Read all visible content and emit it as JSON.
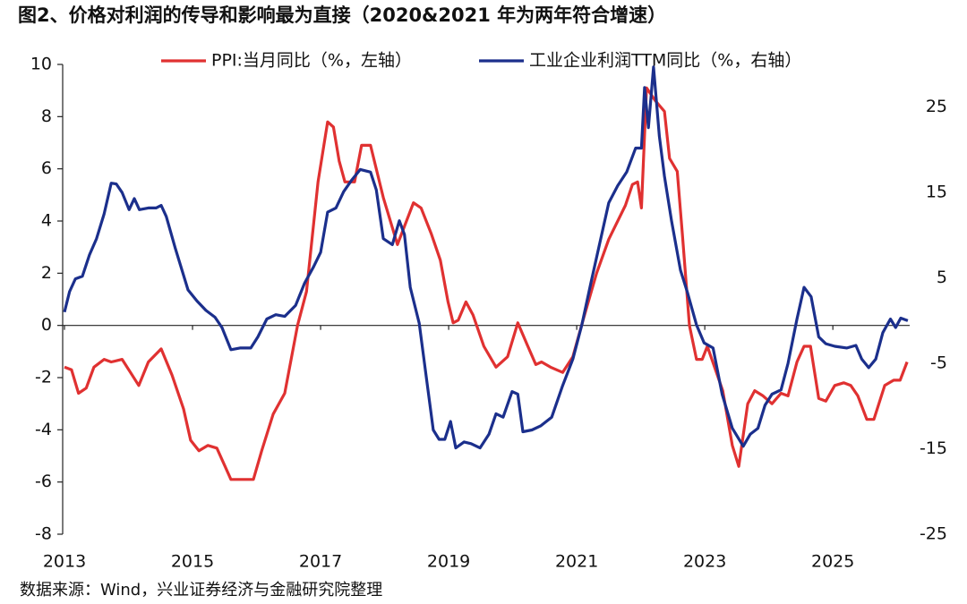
{
  "chart_data": {
    "type": "line",
    "title": "图2、价格对利润的传导和影响最为直接（2020&2021 年为两年符合增速）",
    "source": "数据来源：Wind，兴业证券经济与金融研究院整理",
    "xlim": [
      2013,
      2026.2
    ],
    "xticks": [
      2013,
      2015,
      2017,
      2019,
      2021,
      2023,
      2025
    ],
    "ylim": [
      -8,
      10
    ],
    "yticks": [
      -8,
      -6,
      -4,
      -2,
      0,
      2,
      4,
      6,
      8,
      10
    ],
    "y2lim": [
      -25,
      30
    ],
    "y2ticks": [
      -25,
      -15,
      -5,
      5,
      15,
      25
    ],
    "legend": "top",
    "series": [
      {
        "name": "PPI:当月同比（%，左轴）",
        "color": "#e03131",
        "x": [
          2013.0,
          2013.11,
          2013.22,
          2013.34,
          2013.46,
          2013.62,
          2013.73,
          2013.9,
          2014.03,
          2014.16,
          2014.31,
          2014.51,
          2014.68,
          2014.86,
          2014.97,
          2015.1,
          2015.24,
          2015.38,
          2015.6,
          2015.8,
          2015.95,
          2016.08,
          2016.26,
          2016.44,
          2016.64,
          2016.78,
          2016.96,
          2017.11,
          2017.2,
          2017.29,
          2017.38,
          2017.53,
          2017.64,
          2017.78,
          2017.98,
          2018.2,
          2018.45,
          2018.57,
          2018.73,
          2018.87,
          2018.99,
          2019.07,
          2019.15,
          2019.27,
          2019.38,
          2019.55,
          2019.74,
          2019.92,
          2020.08,
          2020.22,
          2020.36,
          2020.45,
          2020.59,
          2020.78,
          2020.94,
          2021.11,
          2021.31,
          2021.5,
          2021.76,
          2021.87,
          2021.95,
          2022.01,
          2022.09,
          2022.23,
          2022.37,
          2022.45,
          2022.57,
          2022.65,
          2022.76,
          2022.87,
          2022.96,
          2023.04,
          2023.28,
          2023.43,
          2023.53,
          2023.67,
          2023.78,
          2023.91,
          2024.05,
          2024.19,
          2024.3,
          2024.44,
          2024.55,
          2024.65,
          2024.78,
          2024.89,
          2025.03,
          2025.17,
          2025.28,
          2025.39,
          2025.53,
          2025.64,
          2025.81,
          2025.95,
          2026.05,
          2026.16
        ],
        "values": [
          -1.6,
          -1.7,
          -2.6,
          -2.4,
          -1.6,
          -1.3,
          -1.4,
          -1.3,
          -1.8,
          -2.3,
          -1.4,
          -0.9,
          -1.9,
          -3.2,
          -4.4,
          -4.8,
          -4.6,
          -4.7,
          -5.9,
          -5.9,
          -5.9,
          -4.8,
          -3.4,
          -2.6,
          0.0,
          1.3,
          5.5,
          7.8,
          7.6,
          6.3,
          5.5,
          5.5,
          6.9,
          6.9,
          4.9,
          3.1,
          4.7,
          4.5,
          3.5,
          2.5,
          0.9,
          0.1,
          0.2,
          0.9,
          0.4,
          -0.8,
          -1.6,
          -1.2,
          0.1,
          -0.7,
          -1.5,
          -1.4,
          -1.6,
          -1.8,
          -1.2,
          0.3,
          2.0,
          3.3,
          4.6,
          5.4,
          5.5,
          4.5,
          9.1,
          8.6,
          8.2,
          6.4,
          5.9,
          3.5,
          0.0,
          -1.3,
          -1.3,
          -0.8,
          -2.5,
          -4.6,
          -5.4,
          -3.0,
          -2.5,
          -2.7,
          -3.0,
          -2.6,
          -2.7,
          -1.4,
          -0.8,
          -0.8,
          -2.8,
          -2.9,
          -2.3,
          -2.2,
          -2.3,
          -2.7,
          -3.6,
          -3.6,
          -2.3,
          -2.1,
          -2.1,
          -1.4
        ]
      },
      {
        "name": "工业企业利润TTM同比（%，右轴）",
        "color": "#1b2f8c",
        "axis": "y2",
        "x": [
          2013.0,
          2013.08,
          2013.17,
          2013.28,
          2013.39,
          2013.5,
          2013.62,
          2013.73,
          2013.81,
          2013.9,
          2014.01,
          2014.09,
          2014.17,
          2014.31,
          2014.43,
          2014.51,
          2014.59,
          2014.73,
          2014.93,
          2015.07,
          2015.21,
          2015.35,
          2015.46,
          2015.6,
          2015.74,
          2015.91,
          2016.02,
          2016.16,
          2016.3,
          2016.44,
          2016.61,
          2016.75,
          2016.89,
          2017.0,
          2017.11,
          2017.24,
          2017.36,
          2017.48,
          2017.62,
          2017.78,
          2017.87,
          2017.98,
          2018.12,
          2018.23,
          2018.31,
          2018.4,
          2018.54,
          2018.65,
          2018.76,
          2018.85,
          2018.94,
          2019.03,
          2019.11,
          2019.24,
          2019.35,
          2019.49,
          2019.63,
          2019.74,
          2019.85,
          2019.99,
          2020.08,
          2020.16,
          2020.3,
          2020.44,
          2020.61,
          2020.78,
          2020.94,
          2021.08,
          2021.22,
          2021.36,
          2021.5,
          2021.64,
          2021.78,
          2021.92,
          2022.01,
          2022.06,
          2022.12,
          2022.2,
          2022.29,
          2022.37,
          2022.48,
          2022.62,
          2022.73,
          2022.87,
          2022.99,
          2023.13,
          2023.27,
          2023.43,
          2023.6,
          2023.71,
          2023.83,
          2023.94,
          2024.05,
          2024.19,
          2024.3,
          2024.44,
          2024.55,
          2024.66,
          2024.78,
          2024.89,
          2025.03,
          2025.22,
          2025.36,
          2025.45,
          2025.56,
          2025.67,
          2025.78,
          2025.9,
          2025.98,
          2026.06,
          2026.17
        ],
        "values": [
          1.0,
          3.4,
          4.9,
          5.2,
          7.7,
          9.6,
          12.5,
          16.1,
          16.0,
          15.0,
          13.0,
          14.3,
          13.0,
          13.2,
          13.2,
          13.5,
          12.2,
          8.5,
          3.6,
          2.3,
          1.2,
          0.4,
          -0.8,
          -3.4,
          -3.2,
          -3.2,
          -1.9,
          0.2,
          0.7,
          0.5,
          1.8,
          4.4,
          6.3,
          8.0,
          12.7,
          13.2,
          15.1,
          16.4,
          17.7,
          17.4,
          15.3,
          9.6,
          8.9,
          11.7,
          10.1,
          3.9,
          -0.3,
          -6.6,
          -12.8,
          -13.9,
          -13.9,
          -11.8,
          -14.9,
          -14.2,
          -14.4,
          -14.9,
          -13.3,
          -10.9,
          -11.3,
          -8.3,
          -8.6,
          -13.0,
          -12.8,
          -12.3,
          -11.3,
          -7.6,
          -4.5,
          -0.5,
          4.4,
          9.1,
          13.8,
          15.8,
          17.4,
          20.2,
          20.2,
          27.3,
          22.6,
          29.7,
          21.6,
          16.9,
          11.7,
          5.9,
          3.3,
          -0.5,
          -2.6,
          -3.2,
          -8.6,
          -12.6,
          -14.7,
          -13.3,
          -12.6,
          -9.9,
          -8.6,
          -8.1,
          -5.0,
          0.2,
          3.9,
          2.8,
          -1.9,
          -2.7,
          -3.0,
          -3.2,
          -2.9,
          -4.5,
          -5.5,
          -4.5,
          -1.4,
          0.2,
          -0.8,
          0.3,
          0.0
        ]
      }
    ]
  }
}
